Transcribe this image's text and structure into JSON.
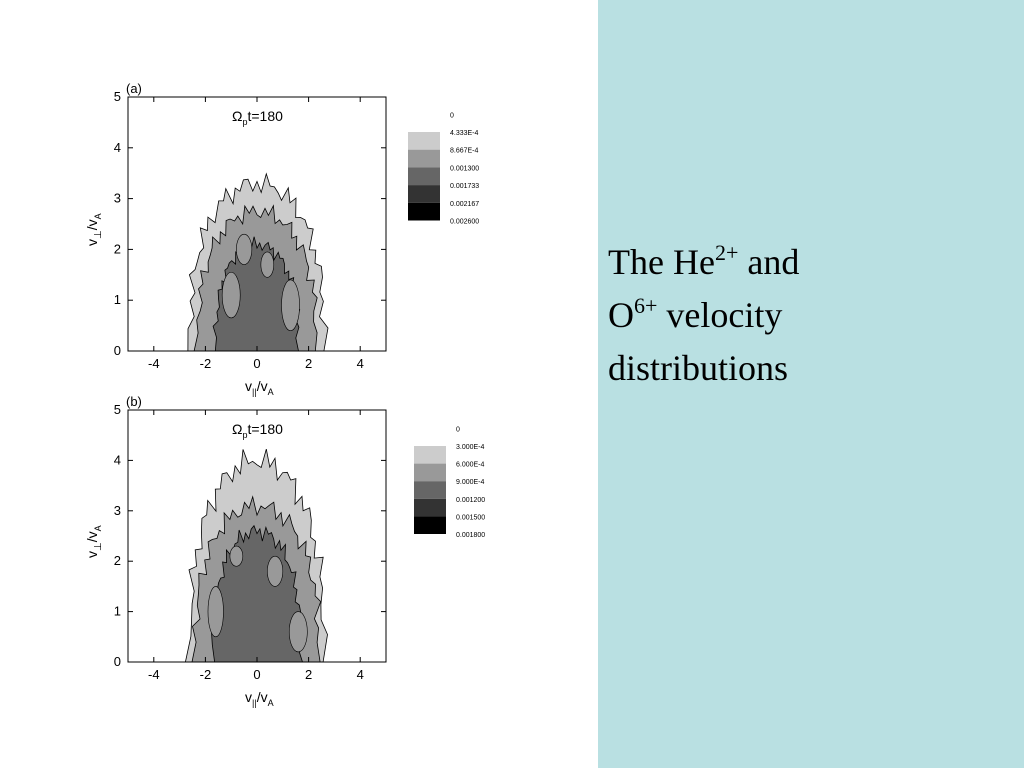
{
  "slide": {
    "colors": {
      "right_panel_bg": "#b9e0e2",
      "left_panel_bg": "#ffffff"
    },
    "title": {
      "part1": "The He",
      "sup1": "2+",
      "part2": " and",
      "part3": "O",
      "sup2": "6+",
      "part4": " velocity",
      "part5": "distributions"
    }
  },
  "chart_data": [
    {
      "type": "heatmap",
      "panel_label": "(a)",
      "annotation": "Ω",
      "annotation_sub": "p",
      "annotation_rest": "t=180",
      "xlabel": {
        "main": "v",
        "sub1": "||",
        "slash": "/v",
        "sub2": "A"
      },
      "ylabel": {
        "main": "v",
        "sub1": "⊥",
        "slash": "/v",
        "sub2": "A"
      },
      "xlim": [
        -5,
        5
      ],
      "ylim": [
        0,
        5
      ],
      "xticks": [
        "-4",
        "-2",
        "0",
        "2",
        "4"
      ],
      "yticks": [
        "0",
        "1",
        "2",
        "3",
        "4",
        "5"
      ],
      "legend_levels": [
        "0",
        "4.333E-4",
        "8.667E-4",
        "0.001300",
        "0.001733",
        "0.002167",
        "0.002600"
      ],
      "legend_colors": [
        "#ffffff",
        "#cccccc",
        "#999999",
        "#666666",
        "#333333",
        "#000000"
      ],
      "contours": [
        {
          "level": 1,
          "color": "#cccccc",
          "peak_v_perp": 3.3,
          "half_width": 2.6
        },
        {
          "level": 2,
          "color": "#999999",
          "peak_v_perp": 2.75,
          "half_width": 2.3
        },
        {
          "level": 3,
          "color": "#666666",
          "peak_v_perp": 2.1,
          "half_width": 1.6
        }
      ]
    },
    {
      "type": "heatmap",
      "panel_label": "(b)",
      "annotation": "Ω",
      "annotation_sub": "p",
      "annotation_rest": "t=180",
      "xlabel": {
        "main": "v",
        "sub1": "||",
        "slash": "/v",
        "sub2": "A"
      },
      "ylabel": {
        "main": "v",
        "sub1": "⊥",
        "slash": "/v",
        "sub2": "A"
      },
      "xlim": [
        -5,
        5
      ],
      "ylim": [
        0,
        5
      ],
      "xticks": [
        "-4",
        "-2",
        "0",
        "2",
        "4"
      ],
      "yticks": [
        "0",
        "1",
        "2",
        "3",
        "4",
        "5"
      ],
      "legend_levels": [
        "0",
        "3.000E-4",
        "6.000E-4",
        "9.000E-4",
        "0.001200",
        "0.001500",
        "0.001800"
      ],
      "legend_colors": [
        "#ffffff",
        "#cccccc",
        "#999999",
        "#666666",
        "#333333",
        "#000000"
      ],
      "contours": [
        {
          "level": 1,
          "color": "#cccccc",
          "peak_v_perp": 4.0,
          "half_width": 2.6
        },
        {
          "level": 2,
          "color": "#999999",
          "peak_v_perp": 3.1,
          "half_width": 2.4
        },
        {
          "level": 3,
          "color": "#666666",
          "peak_v_perp": 2.6,
          "half_width": 1.7
        }
      ]
    }
  ]
}
